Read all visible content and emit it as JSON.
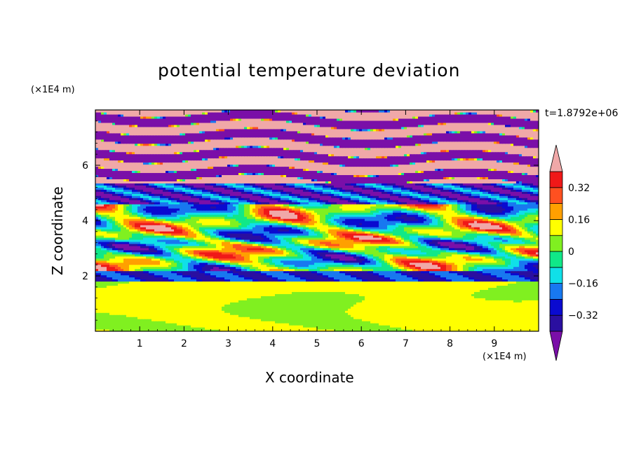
{
  "chart_data": {
    "type": "heatmap",
    "title": "potential temperature deviation",
    "xlabel": "X coordinate",
    "ylabel": "Z coordinate",
    "x_unit": "(×1E4 m)",
    "y_unit": "(×1E4 m)",
    "annotation": "t=1.8792e+06",
    "xlim": [
      0,
      10
    ],
    "ylim": [
      0,
      8
    ],
    "x_ticks": [
      "1",
      "2",
      "3",
      "4",
      "5",
      "6",
      "7",
      "8",
      "9"
    ],
    "y_ticks": [
      "2",
      "4",
      "6"
    ],
    "colorbar": {
      "tick_labels": [
        "0.32",
        "0.16",
        "0",
        "−0.16",
        "−0.32"
      ],
      "tick_values": [
        0.32,
        0.16,
        0,
        -0.16,
        -0.32
      ],
      "levels": [
        -0.4,
        -0.32,
        -0.24,
        -0.16,
        -0.08,
        0,
        0.08,
        0.16,
        0.24,
        0.32,
        0.4
      ],
      "colors": [
        "#7a0fa8",
        "#2a0fa0",
        "#0a0ad0",
        "#1878f0",
        "#10e0e8",
        "#10e888",
        "#80f020",
        "#ffff00",
        "#ffa000",
        "#ff5020",
        "#f01818",
        "#f0a8a8"
      ],
      "extend": "both"
    },
    "bands": [
      {
        "z": [
          0.0,
          1.8
        ],
        "value": 0.05,
        "description": "smooth lower layer"
      },
      {
        "z": [
          1.8,
          2.2
        ],
        "value": -0.3
      },
      {
        "z": [
          2.2,
          4.6
        ],
        "value": 0.0,
        "description": "mixed oscillating layer"
      },
      {
        "z": [
          4.6,
          5.4
        ],
        "value": -0.35
      },
      {
        "z": [
          5.4,
          8.0
        ],
        "value": "alternating ±0.4 stripes"
      }
    ]
  }
}
